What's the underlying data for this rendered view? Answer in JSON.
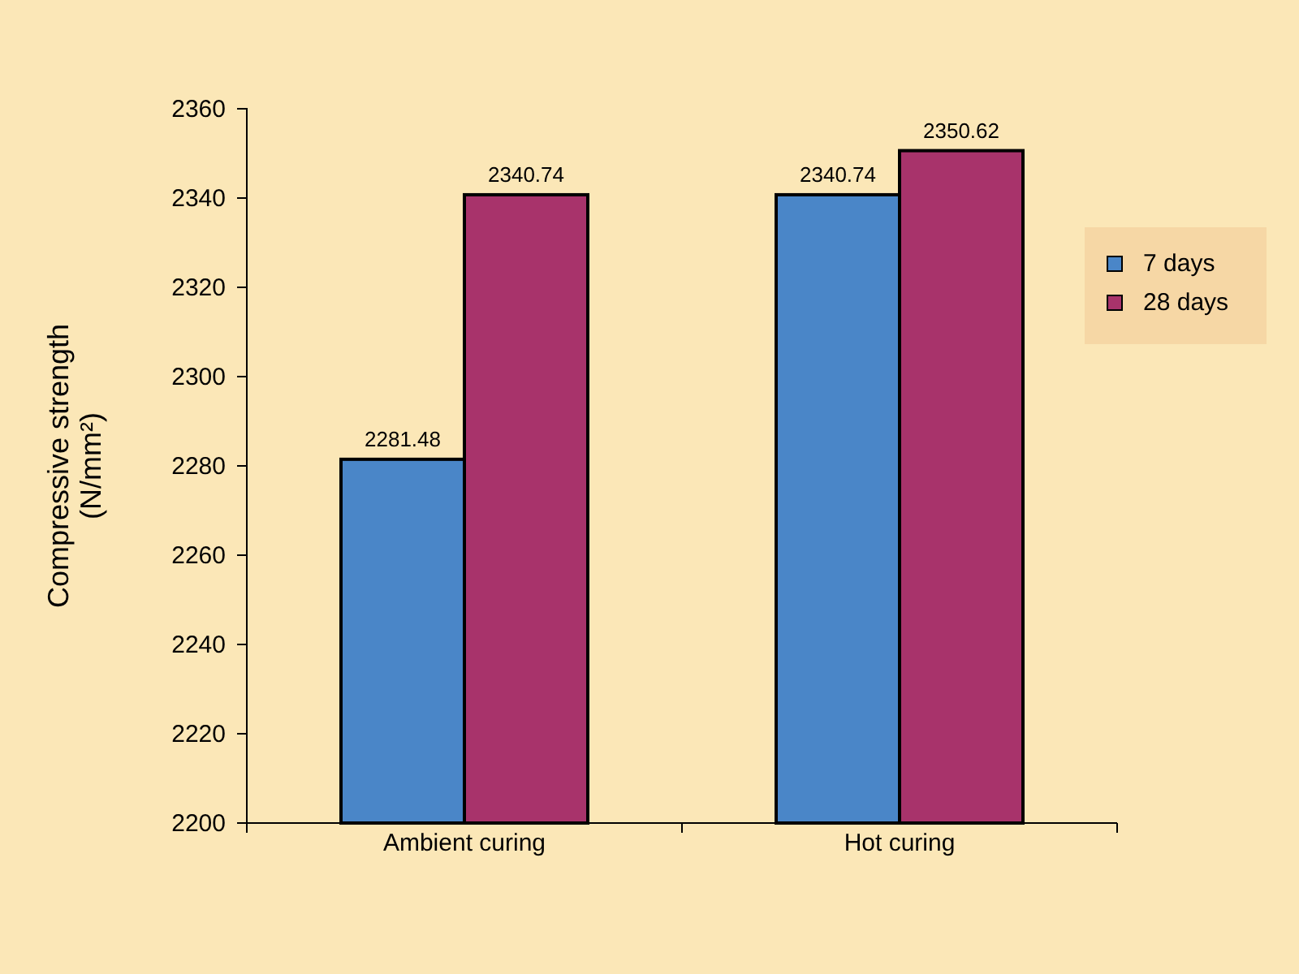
{
  "chart_data": {
    "type": "bar",
    "ylabel": "Compressive strength\n(N/mm²)",
    "categories": [
      "Ambient curing",
      "Hot curing"
    ],
    "series": [
      {
        "name": "7 days",
        "color": "#4a86c8",
        "values": [
          2281.48,
          2340.74
        ]
      },
      {
        "name": "28 days",
        "color": "#a8336b",
        "values": [
          2340.74,
          2350.62
        ]
      }
    ],
    "ylim": [
      2200,
      2360
    ],
    "yticks": [
      2200,
      2220,
      2240,
      2260,
      2280,
      2300,
      2320,
      2340,
      2360
    ],
    "data_labels": true,
    "grid": false,
    "legend": "right"
  }
}
